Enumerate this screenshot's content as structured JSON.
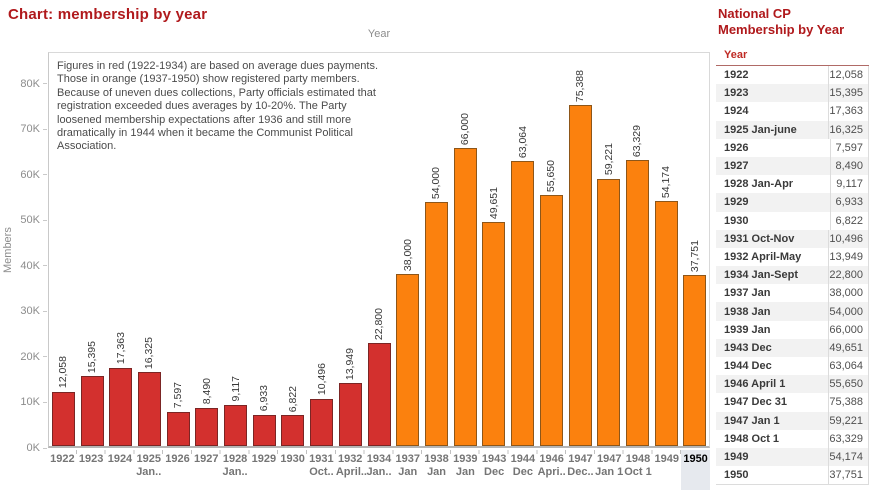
{
  "header": {
    "title": "Chart: membership by year"
  },
  "chart": {
    "x_axis_title": "Year",
    "y_axis_title": "Members",
    "annotation": "Figures in red (1922-1934) are based on average dues payments. Those in orange (1937-1950) show registered party members. Because of uneven dues collections, Party officials estimated that registration exceeded dues averages by 10-20%. The Party loosened membership expectations after 1936 and still more dramatically in 1944 when it became the Communist Political Association.",
    "colors": {
      "title_red": "#b0191c",
      "bar_red": "#d3302e",
      "bar_red_border": "#7b2524",
      "bar_orange": "#fb810e",
      "bar_orange_border": "#8d5619",
      "axis_text": "#8c8c8c",
      "selected_highlight": "#e6e9ee"
    }
  },
  "chart_data": {
    "type": "bar",
    "title": "membership by year",
    "xlabel": "Year",
    "ylabel": "Members",
    "ylim": [
      0,
      87000
    ],
    "grid": false,
    "y_ticks": [
      "0K",
      "10K",
      "20K",
      "30K",
      "40K",
      "50K",
      "60K",
      "70K",
      "80K"
    ],
    "selected_category": "1950",
    "bars": [
      {
        "year": "1922",
        "sub": "",
        "value": 12058,
        "label": "12,058",
        "color": "red"
      },
      {
        "year": "1923",
        "sub": "",
        "value": 15395,
        "label": "15,395",
        "color": "red"
      },
      {
        "year": "1924",
        "sub": "",
        "value": 17363,
        "label": "17,363",
        "color": "red"
      },
      {
        "year": "1925",
        "sub": "Jan..",
        "value": 16325,
        "label": "16,325",
        "color": "red"
      },
      {
        "year": "1926",
        "sub": "",
        "value": 7597,
        "label": "7,597",
        "color": "red"
      },
      {
        "year": "1927",
        "sub": "",
        "value": 8490,
        "label": "8,490",
        "color": "red"
      },
      {
        "year": "1928",
        "sub": "Jan..",
        "value": 9117,
        "label": "9,117",
        "color": "red"
      },
      {
        "year": "1929",
        "sub": "",
        "value": 6933,
        "label": "6,933",
        "color": "red"
      },
      {
        "year": "1930",
        "sub": "",
        "value": 6822,
        "label": "6,822",
        "color": "red"
      },
      {
        "year": "1931",
        "sub": "Oct..",
        "value": 10496,
        "label": "10,496",
        "color": "red"
      },
      {
        "year": "1932",
        "sub": "April..",
        "value": 13949,
        "label": "13,949",
        "color": "red"
      },
      {
        "year": "1934",
        "sub": "Jan..",
        "value": 22800,
        "label": "22,800",
        "color": "red"
      },
      {
        "year": "1937",
        "sub": "Jan",
        "value": 38000,
        "label": "38,000",
        "color": "orange"
      },
      {
        "year": "1938",
        "sub": "Jan",
        "value": 54000,
        "label": "54,000",
        "color": "orange"
      },
      {
        "year": "1939",
        "sub": "Jan",
        "value": 66000,
        "label": "66,000",
        "color": "orange"
      },
      {
        "year": "1943",
        "sub": "Dec",
        "value": 49651,
        "label": "49,651",
        "color": "orange"
      },
      {
        "year": "1944",
        "sub": "Dec",
        "value": 63064,
        "label": "63,064",
        "color": "orange"
      },
      {
        "year": "1946",
        "sub": "Apri..",
        "value": 55650,
        "label": "55,650",
        "color": "orange"
      },
      {
        "year": "1947",
        "sub": "Dec..",
        "value": 75388,
        "label": "75,388",
        "color": "orange"
      },
      {
        "year": "1947",
        "sub": "Jan 1",
        "value": 59221,
        "label": "59,221",
        "color": "orange"
      },
      {
        "year": "1948",
        "sub": "Oct 1",
        "value": 63329,
        "label": "63,329",
        "color": "orange"
      },
      {
        "year": "1949",
        "sub": "",
        "value": 54174,
        "label": "54,174",
        "color": "orange"
      },
      {
        "year": "1950",
        "sub": "",
        "value": 37751,
        "label": "37,751",
        "color": "orange"
      }
    ]
  },
  "table": {
    "title": "National CP Membership by Year",
    "header": "Year",
    "rows": [
      {
        "year": "1922",
        "value": "12,058"
      },
      {
        "year": "1923",
        "value": "15,395"
      },
      {
        "year": "1924",
        "value": "17,363"
      },
      {
        "year": "1925 Jan-june",
        "value": "16,325"
      },
      {
        "year": "1926",
        "value": "7,597"
      },
      {
        "year": "1927",
        "value": "8,490"
      },
      {
        "year": "1928 Jan-Apr",
        "value": "9,117"
      },
      {
        "year": "1929",
        "value": "6,933"
      },
      {
        "year": "1930",
        "value": "6,822"
      },
      {
        "year": "1931 Oct-Nov",
        "value": "10,496"
      },
      {
        "year": "1932 April-May",
        "value": "13,949"
      },
      {
        "year": "1934 Jan-Sept",
        "value": "22,800"
      },
      {
        "year": "1937 Jan",
        "value": "38,000"
      },
      {
        "year": "1938 Jan",
        "value": "54,000"
      },
      {
        "year": "1939 Jan",
        "value": "66,000"
      },
      {
        "year": "1943 Dec",
        "value": "49,651"
      },
      {
        "year": "1944 Dec",
        "value": "63,064"
      },
      {
        "year": "1946 April 1",
        "value": "55,650"
      },
      {
        "year": "1947 Dec 31",
        "value": "75,388"
      },
      {
        "year": "1947 Jan 1",
        "value": "59,221"
      },
      {
        "year": "1948 Oct 1",
        "value": "63,329"
      },
      {
        "year": "1949",
        "value": "54,174"
      },
      {
        "year": "1950",
        "value": "37,751"
      }
    ]
  }
}
